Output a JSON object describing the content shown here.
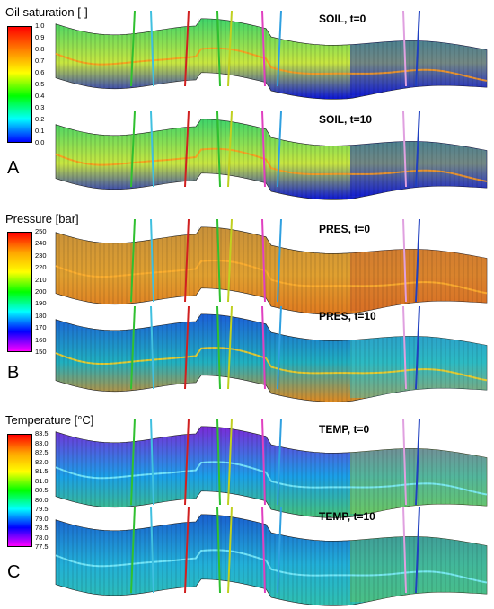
{
  "legends": {
    "soil": {
      "title": "Oil saturation [-]",
      "ticks": [
        "1.0",
        "0.9",
        "0.8",
        "0.7",
        "0.6",
        "0.5",
        "0.4",
        "0.3",
        "0.2",
        "0.1",
        "0.0"
      ],
      "colors": [
        "#ff0000",
        "#ff8000",
        "#ffff00",
        "#00ff00",
        "#00ffff",
        "#0000ff"
      ]
    },
    "pres": {
      "title": "Pressure [bar]",
      "ticks": [
        "250",
        "240",
        "230",
        "220",
        "210",
        "200",
        "190",
        "180",
        "170",
        "160",
        "150"
      ],
      "colors": [
        "#ff0000",
        "#ffa500",
        "#ffff00",
        "#00ff00",
        "#00ffff",
        "#0000ff",
        "#ff00ff"
      ]
    },
    "temp": {
      "title": "Temperature [°C]",
      "ticks": [
        "83.5",
        "83.0",
        "82.5",
        "82.0",
        "81.5",
        "81.0",
        "80.5",
        "80.0",
        "79.5",
        "79.0",
        "78.5",
        "78.0",
        "77.5"
      ],
      "colors": [
        "#ff0000",
        "#ffa500",
        "#ffff00",
        "#00ff00",
        "#00ffff",
        "#0000ff",
        "#ff00ff"
      ]
    }
  },
  "panels": {
    "a": "A",
    "b": "B",
    "c": "C"
  },
  "sections": [
    {
      "key": "soil0",
      "label": "SOIL, t=0",
      "top_color": "#3fd46a",
      "mid_color": "#c8e640",
      "bottom_color": "#0a14d8",
      "tail_color": "#0a14d8",
      "streak": "#ff9a1e"
    },
    {
      "key": "soil10",
      "label": "SOIL, t=10",
      "top_color": "#3fd46a",
      "mid_color": "#c8e640",
      "bottom_color": "#0a14d8",
      "tail_color": "#0a14d8",
      "streak": "#ff9a1e"
    },
    {
      "key": "pres0",
      "label": "PRES, t=0",
      "top_color": "#c8913a",
      "mid_color": "#e0a030",
      "bottom_color": "#e07a20",
      "tail_color": "#d0602a",
      "streak": "#ffb030"
    },
    {
      "key": "pres10",
      "label": "PRES, t=10",
      "top_color": "#1c5fd8",
      "mid_color": "#20b0c0",
      "bottom_color": "#e08a20",
      "tail_color": "#3cc8c8",
      "streak": "#ffd020"
    },
    {
      "key": "temp0",
      "label": "TEMP, t=0",
      "top_color": "#7a2ad8",
      "mid_color": "#1aa0e8",
      "bottom_color": "#46c27a",
      "tail_color": "#9ad040",
      "streak": "#80f0ff"
    },
    {
      "key": "temp10",
      "label": "TEMP, t=10",
      "top_color": "#1a60d0",
      "mid_color": "#22b0d8",
      "bottom_color": "#30c0b0",
      "tail_color": "#6ac050",
      "streak": "#80f0ff"
    }
  ],
  "wells": [
    "#30c030",
    "#40c0e0",
    "#d02020",
    "#30c030",
    "#c0d020",
    "#e040c0",
    "#30a0e0",
    "#e0a0e0",
    "#2040c0"
  ]
}
